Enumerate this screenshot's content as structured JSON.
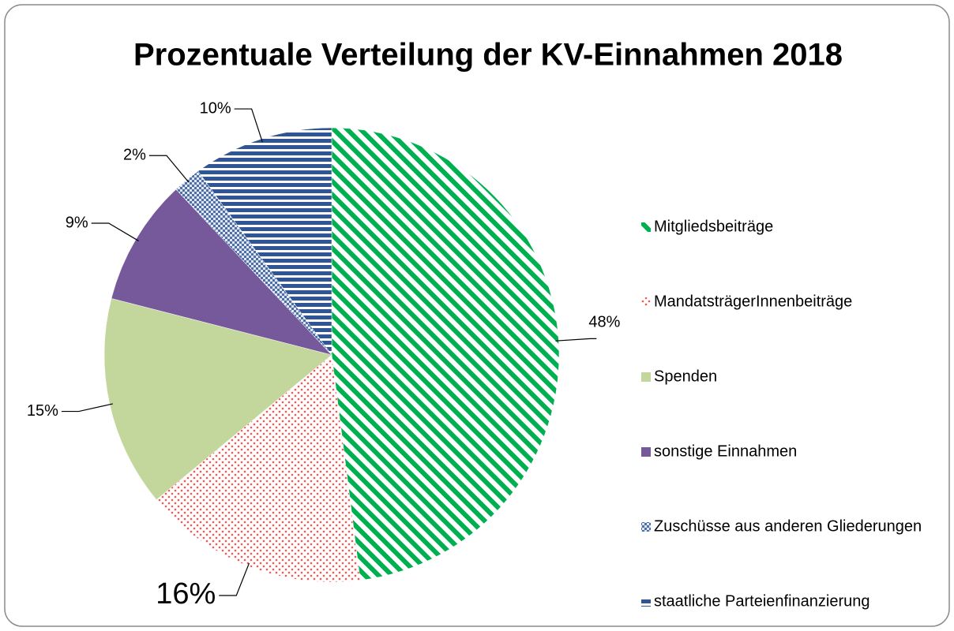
{
  "chart_data": {
    "type": "pie",
    "title": "Prozentuale Verteilung der KV-Einnahmen 2018",
    "categories": [
      "Mitgliedsbeiträge",
      "MandatsträgerInnenbeiträge",
      "Spenden",
      "sonstige Einnahmen",
      "Zuschüsse aus anderen Gliederungen",
      "staatliche Parteienfinanzierung"
    ],
    "values": [
      48,
      16,
      15,
      9,
      2,
      10
    ],
    "value_labels": [
      "48%",
      "16%",
      "15%",
      "9%",
      "2%",
      "10%"
    ],
    "colors": [
      "#00b050",
      "#ff5050",
      "#c3d69b",
      "#76599a",
      "#4f6fa8",
      "#2f5597"
    ],
    "patterns": [
      "diagonal",
      "dots",
      "solid",
      "solid",
      "check",
      "horizontal"
    ],
    "legend": "right"
  }
}
